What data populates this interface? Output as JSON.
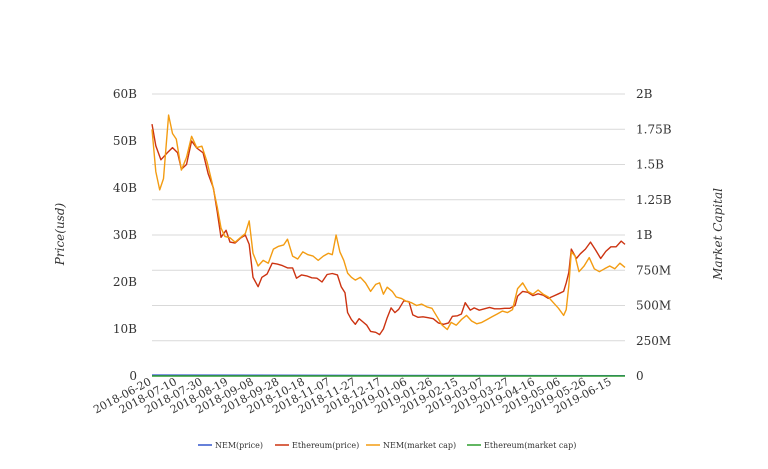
{
  "chart_data": {
    "type": "line",
    "title": "",
    "ylabel_left": "Price(usd)",
    "ylabel_right": "Market Capital",
    "left_ticks": [
      "0",
      "10B",
      "20B",
      "30B",
      "40B",
      "50B",
      "60B"
    ],
    "right_ticks": [
      "0",
      "250M",
      "500M",
      "750M",
      "1B",
      "1.25B",
      "1.5B",
      "1.75B",
      "2B"
    ],
    "left_range": [
      0,
      60000000000
    ],
    "right_range": [
      0,
      2000000000
    ],
    "x_range": [
      "2018-06-20",
      "2019-06-25"
    ],
    "x_tick_labels": [
      "2018-06-20",
      "2018-07-10",
      "2018-07-30",
      "2018-08-19",
      "2018-09-08",
      "2018-09-28",
      "2018-10-18",
      "2018-11-07",
      "2018-11-27",
      "2018-12-17",
      "2019-01-06",
      "2019-01-26",
      "2019-02-15",
      "2019-03-07",
      "2019-03-27",
      "2019-04-16",
      "2019-05-06",
      "2019-05-26",
      "2019-06-15"
    ],
    "grid": true,
    "legend_position": "bottom",
    "series": [
      {
        "name": "NEM(price)",
        "axis": "left",
        "color": "#3355cc",
        "points": [
          [
            "2018-06-20",
            0.2
          ],
          [
            "2019-06-25",
            0.07
          ]
        ]
      },
      {
        "name": "Ethereum(price)",
        "axis": "left",
        "color": "#cc3311",
        "points": [
          [
            "2018-06-20",
            53.6
          ],
          [
            "2018-06-23",
            49.0
          ],
          [
            "2018-06-27",
            46.0
          ],
          [
            "2018-07-02",
            47.5
          ],
          [
            "2018-07-06",
            48.6
          ],
          [
            "2018-07-10",
            47.5
          ],
          [
            "2018-07-13",
            44.0
          ],
          [
            "2018-07-17",
            45.0
          ],
          [
            "2018-07-21",
            50.0
          ],
          [
            "2018-07-25",
            48.5
          ],
          [
            "2018-07-30",
            47.5
          ],
          [
            "2018-08-03",
            43.0
          ],
          [
            "2018-08-07",
            40.0
          ],
          [
            "2018-08-10",
            35.0
          ],
          [
            "2018-08-13",
            29.5
          ],
          [
            "2018-08-17",
            31.0
          ],
          [
            "2018-08-20",
            28.5
          ],
          [
            "2018-08-24",
            28.3
          ],
          [
            "2018-08-28",
            29.3
          ],
          [
            "2018-09-01",
            30.0
          ],
          [
            "2018-09-04",
            28.0
          ],
          [
            "2018-09-07",
            21.0
          ],
          [
            "2018-09-11",
            19.0
          ],
          [
            "2018-09-14",
            21.0
          ],
          [
            "2018-09-18",
            21.7
          ],
          [
            "2018-09-22",
            24.0
          ],
          [
            "2018-09-26",
            23.8
          ],
          [
            "2018-09-30",
            23.5
          ],
          [
            "2018-10-04",
            23.0
          ],
          [
            "2018-10-08",
            23.0
          ],
          [
            "2018-10-11",
            20.8
          ],
          [
            "2018-10-15",
            21.5
          ],
          [
            "2018-10-19",
            21.3
          ],
          [
            "2018-10-23",
            20.9
          ],
          [
            "2018-10-27",
            20.8
          ],
          [
            "2018-10-31",
            20.0
          ],
          [
            "2018-11-04",
            21.6
          ],
          [
            "2018-11-08",
            21.8
          ],
          [
            "2018-11-12",
            21.5
          ],
          [
            "2018-11-15",
            19.0
          ],
          [
            "2018-11-18",
            17.7
          ],
          [
            "2018-11-20",
            13.5
          ],
          [
            "2018-11-23",
            12.0
          ],
          [
            "2018-11-26",
            11.0
          ],
          [
            "2018-11-29",
            12.2
          ],
          [
            "2018-12-02",
            11.5
          ],
          [
            "2018-12-05",
            10.8
          ],
          [
            "2018-12-08",
            9.5
          ],
          [
            "2018-12-12",
            9.3
          ],
          [
            "2018-12-15",
            8.8
          ],
          [
            "2018-12-18",
            10.0
          ],
          [
            "2018-12-21",
            12.4
          ],
          [
            "2018-12-24",
            14.5
          ],
          [
            "2018-12-27",
            13.5
          ],
          [
            "2018-12-30",
            14.2
          ],
          [
            "2019-01-03",
            16.0
          ],
          [
            "2019-01-07",
            15.8
          ],
          [
            "2019-01-10",
            13.0
          ],
          [
            "2019-01-14",
            12.5
          ],
          [
            "2019-01-18",
            12.6
          ],
          [
            "2019-01-22",
            12.4
          ],
          [
            "2019-01-26",
            12.2
          ],
          [
            "2019-01-30",
            11.3
          ],
          [
            "2019-02-03",
            11.0
          ],
          [
            "2019-02-07",
            11.3
          ],
          [
            "2019-02-10",
            12.7
          ],
          [
            "2019-02-14",
            12.8
          ],
          [
            "2019-02-17",
            13.2
          ],
          [
            "2019-02-20",
            15.6
          ],
          [
            "2019-02-24",
            14.0
          ],
          [
            "2019-02-27",
            14.5
          ],
          [
            "2019-03-03",
            14.0
          ],
          [
            "2019-03-07",
            14.3
          ],
          [
            "2019-03-11",
            14.6
          ],
          [
            "2019-03-15",
            14.3
          ],
          [
            "2019-03-19",
            14.3
          ],
          [
            "2019-03-23",
            14.4
          ],
          [
            "2019-03-27",
            14.4
          ],
          [
            "2019-03-31",
            15.0
          ],
          [
            "2019-04-02",
            17.0
          ],
          [
            "2019-04-06",
            18.0
          ],
          [
            "2019-04-10",
            17.8
          ],
          [
            "2019-04-14",
            17.1
          ],
          [
            "2019-04-18",
            17.5
          ],
          [
            "2019-04-22",
            17.2
          ],
          [
            "2019-04-26",
            16.5
          ],
          [
            "2019-04-30",
            17.0
          ],
          [
            "2019-05-04",
            17.5
          ],
          [
            "2019-05-08",
            18.0
          ],
          [
            "2019-05-10",
            19.8
          ],
          [
            "2019-05-12",
            22.0
          ],
          [
            "2019-05-14",
            27.0
          ],
          [
            "2019-05-16",
            26.0
          ],
          [
            "2019-05-18",
            25.0
          ],
          [
            "2019-05-21",
            26.0
          ],
          [
            "2019-05-25",
            27.0
          ],
          [
            "2019-05-29",
            28.5
          ],
          [
            "2019-06-02",
            26.8
          ],
          [
            "2019-06-06",
            25.0
          ],
          [
            "2019-06-10",
            26.5
          ],
          [
            "2019-06-14",
            27.5
          ],
          [
            "2019-06-18",
            27.5
          ],
          [
            "2019-06-22",
            28.7
          ],
          [
            "2019-06-25",
            28.0
          ]
        ]
      },
      {
        "name": "NEM(market cap)",
        "axis": "right",
        "color": "#f39c12",
        "points": [
          [
            "2018-06-20",
            1.75
          ],
          [
            "2018-06-23",
            1.45
          ],
          [
            "2018-06-26",
            1.32
          ],
          [
            "2018-06-29",
            1.4
          ],
          [
            "2018-07-03",
            1.85
          ],
          [
            "2018-07-06",
            1.72
          ],
          [
            "2018-07-09",
            1.68
          ],
          [
            "2018-07-13",
            1.46
          ],
          [
            "2018-07-17",
            1.55
          ],
          [
            "2018-07-21",
            1.7
          ],
          [
            "2018-07-25",
            1.62
          ],
          [
            "2018-07-29",
            1.63
          ],
          [
            "2018-08-02",
            1.52
          ],
          [
            "2018-08-06",
            1.37
          ],
          [
            "2018-08-10",
            1.2
          ],
          [
            "2018-08-13",
            1.05
          ],
          [
            "2018-08-16",
            0.99
          ],
          [
            "2018-08-20",
            0.98
          ],
          [
            "2018-08-24",
            0.95
          ],
          [
            "2018-08-28",
            0.98
          ],
          [
            "2018-09-01",
            1.01
          ],
          [
            "2018-09-04",
            1.1
          ],
          [
            "2018-09-07",
            0.87
          ],
          [
            "2018-09-11",
            0.78
          ],
          [
            "2018-09-15",
            0.82
          ],
          [
            "2018-09-19",
            0.8
          ],
          [
            "2018-09-23",
            0.9
          ],
          [
            "2018-09-27",
            0.92
          ],
          [
            "2018-10-01",
            0.93
          ],
          [
            "2018-10-04",
            0.97
          ],
          [
            "2018-10-08",
            0.85
          ],
          [
            "2018-10-12",
            0.83
          ],
          [
            "2018-10-16",
            0.88
          ],
          [
            "2018-10-20",
            0.86
          ],
          [
            "2018-10-24",
            0.85
          ],
          [
            "2018-10-28",
            0.82
          ],
          [
            "2018-11-01",
            0.85
          ],
          [
            "2018-11-05",
            0.87
          ],
          [
            "2018-11-08",
            0.86
          ],
          [
            "2018-11-11",
            1.0
          ],
          [
            "2018-11-14",
            0.88
          ],
          [
            "2018-11-17",
            0.82
          ],
          [
            "2018-11-20",
            0.73
          ],
          [
            "2018-11-23",
            0.7
          ],
          [
            "2018-11-26",
            0.68
          ],
          [
            "2018-11-30",
            0.7
          ],
          [
            "2018-12-04",
            0.66
          ],
          [
            "2018-12-08",
            0.6
          ],
          [
            "2018-12-12",
            0.65
          ],
          [
            "2018-12-15",
            0.66
          ],
          [
            "2018-12-18",
            0.58
          ],
          [
            "2018-12-21",
            0.63
          ],
          [
            "2018-12-25",
            0.6
          ],
          [
            "2018-12-28",
            0.56
          ],
          [
            "2019-01-01",
            0.55
          ],
          [
            "2019-01-05",
            0.53
          ],
          [
            "2019-01-09",
            0.52
          ],
          [
            "2019-01-13",
            0.5
          ],
          [
            "2019-01-17",
            0.51
          ],
          [
            "2019-01-21",
            0.49
          ],
          [
            "2019-01-25",
            0.48
          ],
          [
            "2019-01-29",
            0.42
          ],
          [
            "2019-02-02",
            0.36
          ],
          [
            "2019-02-06",
            0.33
          ],
          [
            "2019-02-09",
            0.38
          ],
          [
            "2019-02-13",
            0.36
          ],
          [
            "2019-02-17",
            0.4
          ],
          [
            "2019-02-21",
            0.43
          ],
          [
            "2019-02-25",
            0.39
          ],
          [
            "2019-03-01",
            0.37
          ],
          [
            "2019-03-05",
            0.38
          ],
          [
            "2019-03-09",
            0.4
          ],
          [
            "2019-03-13",
            0.42
          ],
          [
            "2019-03-17",
            0.44
          ],
          [
            "2019-03-21",
            0.46
          ],
          [
            "2019-03-25",
            0.45
          ],
          [
            "2019-03-29",
            0.47
          ],
          [
            "2019-04-02",
            0.62
          ],
          [
            "2019-04-06",
            0.66
          ],
          [
            "2019-04-10",
            0.6
          ],
          [
            "2019-04-14",
            0.58
          ],
          [
            "2019-04-18",
            0.61
          ],
          [
            "2019-04-22",
            0.58
          ],
          [
            "2019-04-26",
            0.56
          ],
          [
            "2019-04-30",
            0.52
          ],
          [
            "2019-05-04",
            0.48
          ],
          [
            "2019-05-08",
            0.43
          ],
          [
            "2019-05-10",
            0.47
          ],
          [
            "2019-05-12",
            0.64
          ],
          [
            "2019-05-14",
            0.88
          ],
          [
            "2019-05-17",
            0.85
          ],
          [
            "2019-05-20",
            0.74
          ],
          [
            "2019-05-24",
            0.78
          ],
          [
            "2019-05-28",
            0.84
          ],
          [
            "2019-06-01",
            0.76
          ],
          [
            "2019-06-05",
            0.74
          ],
          [
            "2019-06-09",
            0.76
          ],
          [
            "2019-06-13",
            0.78
          ],
          [
            "2019-06-17",
            0.76
          ],
          [
            "2019-06-21",
            0.8
          ],
          [
            "2019-06-25",
            0.77
          ]
        ]
      },
      {
        "name": "Ethereum(market cap)",
        "axis": "right",
        "color": "#2e9e2e",
        "points": [
          [
            "2018-06-20",
            0.0
          ],
          [
            "2019-06-25",
            0.0
          ]
        ]
      }
    ]
  }
}
